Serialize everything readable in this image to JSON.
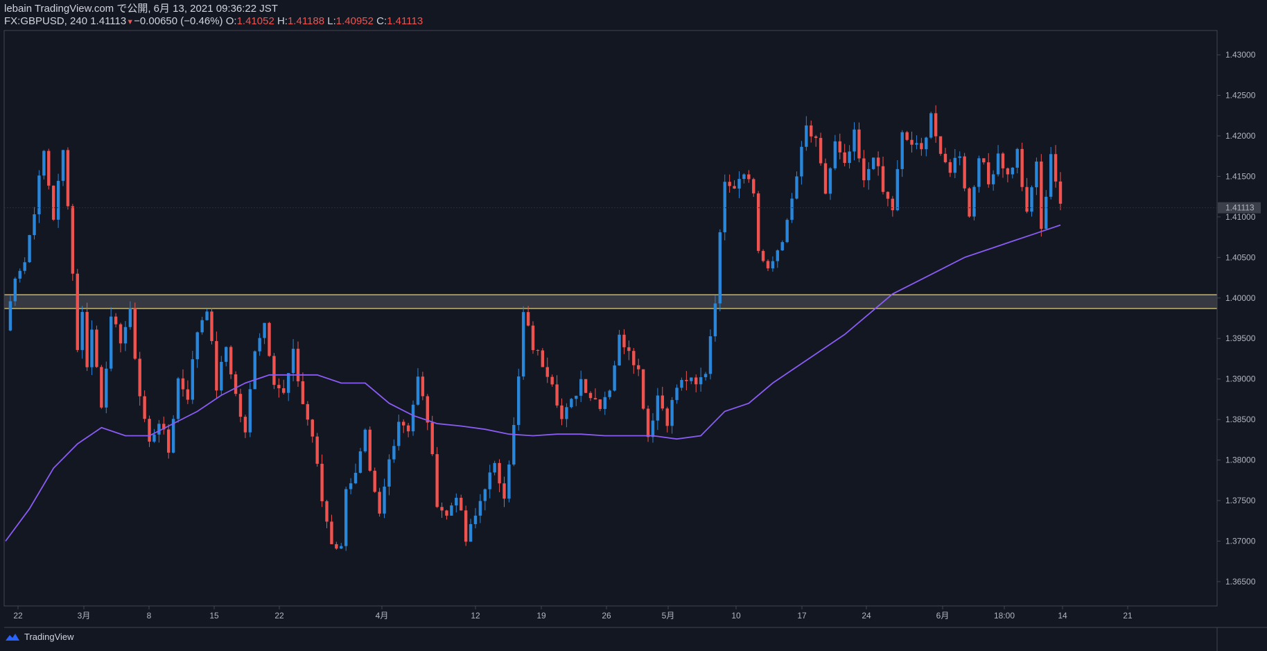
{
  "header": {
    "publish_line": "lebain TradingView.com で公開, 6月 13, 2021 09:36:22 JST",
    "symbol": "FX:GBPUSD, 240",
    "last": "1.41113",
    "change": "−0.00650 (−0.46%)",
    "o_label": "O:",
    "o_value": "1.41052",
    "h_label": "H:",
    "h_value": "1.41188",
    "l_label": "L:",
    "l_value": "1.40952",
    "c_label": "C:",
    "c_value": "1.41113"
  },
  "footer": {
    "brand": "TradingView",
    "icon": "tradingview-cloud-icon"
  },
  "colors": {
    "background": "#131722",
    "up": "#2a86d9",
    "down": "#ef5350",
    "ma": "#8a5cf5",
    "zone_border": "#e8d16b",
    "zone_fill": "#3d4048",
    "text": "#d1d4dc",
    "axis": "#434651"
  },
  "chart_data": {
    "type": "candlestick",
    "symbol": "FX:GBPUSD",
    "interval": "240",
    "ylim": [
      1.362,
      1.433
    ],
    "price_ticks": [
      "1.43000",
      "1.42500",
      "1.42000",
      "1.41500",
      "1.41000",
      "1.40500",
      "1.40000",
      "1.39500",
      "1.39000",
      "1.38500",
      "1.38000",
      "1.37500",
      "1.37000",
      "1.36500"
    ],
    "last_price_label": "1.41113",
    "time_ticks": [
      "22",
      "3月",
      "8",
      "15",
      "22",
      "4月",
      "12",
      "19",
      "26",
      "5月",
      "10",
      "17",
      "24",
      "6月",
      "18:00",
      "14",
      "21"
    ],
    "support_zone": {
      "low": 1.3987,
      "high": 1.4004
    },
    "path_anchors": [
      [
        0,
        1.396
      ],
      [
        2,
        1.403
      ],
      [
        4,
        1.4045
      ],
      [
        6,
        1.411
      ],
      [
        8,
        1.418
      ],
      [
        10,
        1.41
      ],
      [
        12,
        1.418
      ],
      [
        13,
        1.412
      ],
      [
        15,
        1.394
      ],
      [
        16,
        1.398
      ],
      [
        17,
        1.392
      ],
      [
        18,
        1.396
      ],
      [
        20,
        1.387
      ],
      [
        22,
        1.397
      ],
      [
        24,
        1.395
      ],
      [
        26,
        1.398
      ],
      [
        28,
        1.388
      ],
      [
        30,
        1.382
      ],
      [
        32,
        1.385
      ],
      [
        34,
        1.381
      ],
      [
        36,
        1.39
      ],
      [
        38,
        1.388
      ],
      [
        40,
        1.396
      ],
      [
        42,
        1.399
      ],
      [
        44,
        1.389
      ],
      [
        46,
        1.394
      ],
      [
        48,
        1.388
      ],
      [
        50,
        1.383
      ],
      [
        52,
        1.394
      ],
      [
        54,
        1.397
      ],
      [
        56,
        1.39
      ],
      [
        58,
        1.388
      ],
      [
        60,
        1.393
      ],
      [
        62,
        1.387
      ],
      [
        64,
        1.383
      ],
      [
        66,
        1.375
      ],
      [
        68,
        1.37
      ],
      [
        70,
        1.369
      ],
      [
        71,
        1.377
      ],
      [
        73,
        1.378
      ],
      [
        75,
        1.383
      ],
      [
        76,
        1.378
      ],
      [
        78,
        1.373
      ],
      [
        80,
        1.38
      ],
      [
        82,
        1.385
      ],
      [
        84,
        1.384
      ],
      [
        86,
        1.39
      ],
      [
        88,
        1.385
      ],
      [
        90,
        1.375
      ],
      [
        92,
        1.373
      ],
      [
        94,
        1.376
      ],
      [
        96,
        1.37
      ],
      [
        98,
        1.373
      ],
      [
        100,
        1.377
      ],
      [
        102,
        1.379
      ],
      [
        104,
        1.376
      ],
      [
        106,
        1.384
      ],
      [
        107,
        1.39
      ],
      [
        108,
        1.398
      ],
      [
        110,
        1.394
      ],
      [
        112,
        1.392
      ],
      [
        114,
        1.39
      ],
      [
        116,
        1.385
      ],
      [
        118,
        1.387
      ],
      [
        120,
        1.39
      ],
      [
        122,
        1.388
      ],
      [
        124,
        1.387
      ],
      [
        126,
        1.389
      ],
      [
        128,
        1.395
      ],
      [
        130,
        1.394
      ],
      [
        132,
        1.391
      ],
      [
        134,
        1.383
      ],
      [
        136,
        1.388
      ],
      [
        138,
        1.385
      ],
      [
        140,
        1.389
      ],
      [
        142,
        1.39
      ],
      [
        144,
        1.389
      ],
      [
        146,
        1.391
      ],
      [
        148,
        1.4
      ],
      [
        150,
        1.415
      ],
      [
        152,
        1.414
      ],
      [
        154,
        1.416
      ],
      [
        156,
        1.413
      ],
      [
        157,
        1.406
      ],
      [
        159,
        1.403
      ],
      [
        161,
        1.406
      ],
      [
        163,
        1.409
      ],
      [
        165,
        1.415
      ],
      [
        167,
        1.421
      ],
      [
        169,
        1.419
      ],
      [
        171,
        1.413
      ],
      [
        173,
        1.419
      ],
      [
        175,
        1.416
      ],
      [
        177,
        1.42
      ],
      [
        179,
        1.414
      ],
      [
        181,
        1.418
      ],
      [
        183,
        1.413
      ],
      [
        185,
        1.411
      ],
      [
        187,
        1.42
      ],
      [
        189,
        1.419
      ],
      [
        191,
        1.418
      ],
      [
        193,
        1.423
      ],
      [
        195,
        1.417
      ],
      [
        197,
        1.416
      ],
      [
        199,
        1.418
      ],
      [
        201,
        1.41
      ],
      [
        203,
        1.418
      ],
      [
        205,
        1.414
      ],
      [
        207,
        1.418
      ],
      [
        209,
        1.415
      ],
      [
        211,
        1.418
      ],
      [
        213,
        1.41
      ],
      [
        215,
        1.417
      ],
      [
        216,
        1.408
      ],
      [
        218,
        1.418
      ],
      [
        220,
        1.411
      ]
    ],
    "ma_points": [
      [
        0,
        1.37
      ],
      [
        5,
        1.374
      ],
      [
        10,
        1.379
      ],
      [
        15,
        1.382
      ],
      [
        20,
        1.384
      ],
      [
        25,
        1.383
      ],
      [
        30,
        1.383
      ],
      [
        35,
        1.3845
      ],
      [
        40,
        1.386
      ],
      [
        45,
        1.388
      ],
      [
        50,
        1.3895
      ],
      [
        55,
        1.3905
      ],
      [
        60,
        1.3905
      ],
      [
        65,
        1.3905
      ],
      [
        70,
        1.3895
      ],
      [
        75,
        1.3895
      ],
      [
        80,
        1.387
      ],
      [
        85,
        1.3855
      ],
      [
        90,
        1.3845
      ],
      [
        95,
        1.3842
      ],
      [
        100,
        1.3838
      ],
      [
        105,
        1.3832
      ],
      [
        110,
        1.383
      ],
      [
        115,
        1.3832
      ],
      [
        120,
        1.3832
      ],
      [
        125,
        1.383
      ],
      [
        130,
        1.383
      ],
      [
        135,
        1.383
      ],
      [
        140,
        1.3826
      ],
      [
        145,
        1.383
      ],
      [
        150,
        1.386
      ],
      [
        155,
        1.387
      ],
      [
        160,
        1.3895
      ],
      [
        165,
        1.3915
      ],
      [
        170,
        1.3935
      ],
      [
        175,
        1.3955
      ],
      [
        180,
        1.398
      ],
      [
        185,
        1.4005
      ],
      [
        190,
        1.402
      ],
      [
        195,
        1.4035
      ],
      [
        200,
        1.405
      ],
      [
        205,
        1.406
      ],
      [
        210,
        1.407
      ],
      [
        215,
        1.408
      ],
      [
        220,
        1.409
      ]
    ]
  }
}
